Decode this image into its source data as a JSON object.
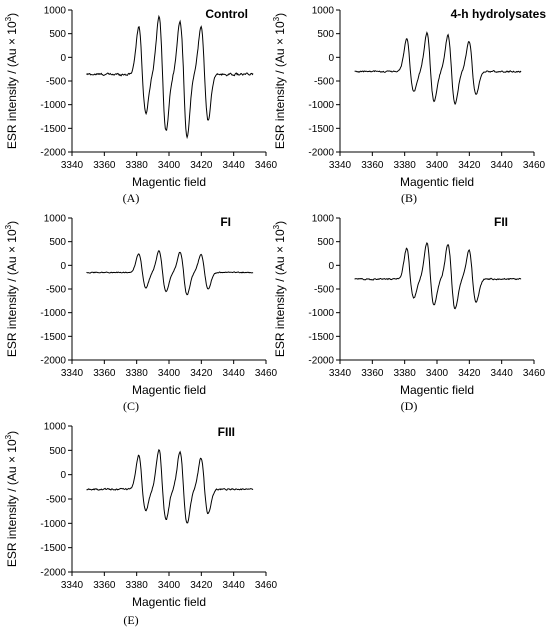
{
  "figure": {
    "panels": [
      {
        "title": "Control",
        "caption": "(A)",
        "amp": 1.0,
        "spread": 1.0,
        "baseline": -360,
        "noise": 40
      },
      {
        "title": "4-h hydrolysates",
        "caption": "(B)",
        "amp": 0.62,
        "spread": 0.62,
        "baseline": -300,
        "noise": 28
      },
      {
        "title": "FI",
        "caption": "(C)",
        "amp": 0.33,
        "spread": 0.33,
        "baseline": -150,
        "noise": 18
      },
      {
        "title": "FII",
        "caption": "(D)",
        "amp": 0.58,
        "spread": 0.58,
        "baseline": -290,
        "noise": 28
      },
      {
        "title": "FIII",
        "caption": "(E)",
        "amp": 0.6,
        "spread": 0.6,
        "baseline": -300,
        "noise": 28
      }
    ]
  },
  "chart_data": [
    {
      "type": "line",
      "title": "Control",
      "caption": "(A)",
      "xlabel": "Magentic field",
      "ylabel": "ESR intensity / (Au × 10",
      "ylabel_sup": "3",
      "ylabel_close": ")",
      "xlim": [
        3340,
        3460
      ],
      "ylim": [
        -2000,
        1000
      ],
      "xticks": [
        "3340",
        "3360",
        "3380",
        "3400",
        "3420",
        "3440",
        "3460"
      ],
      "yticks": [
        "1000",
        "500",
        "0",
        "-500",
        "-1000",
        "-1500",
        "-2000"
      ],
      "x_range": [
        3349,
        3452
      ],
      "baseline": -360,
      "lines": [
        {
          "x": 3383.5,
          "peak": 650,
          "trough": -1180
        },
        {
          "x": 3396,
          "peak": 860,
          "trough": -1550
        },
        {
          "x": 3409,
          "peak": 750,
          "trough": -1680
        },
        {
          "x": 3422,
          "peak": 640,
          "trough": -1330
        }
      ]
    },
    {
      "type": "line",
      "title": "4-h hydrolysates",
      "caption": "(B)",
      "xlabel": "Magentic field",
      "ylabel": "ESR intensity / (Au × 10",
      "ylabel_sup": "3",
      "ylabel_close": ")",
      "xlim": [
        3340,
        3460
      ],
      "ylim": [
        -2000,
        1000
      ],
      "xticks": [
        "3340",
        "3360",
        "3380",
        "3400",
        "3420",
        "3440",
        "3460"
      ],
      "yticks": [
        "1000",
        "500",
        "0",
        "-500",
        "-1000",
        "-1500",
        "-2000"
      ],
      "x_range": [
        3349,
        3452
      ],
      "baseline": -300,
      "lines": [
        {
          "x": 3383.5,
          "peak": 400,
          "trough": -730
        },
        {
          "x": 3396,
          "peak": 520,
          "trough": -920
        },
        {
          "x": 3409,
          "peak": 460,
          "trough": -1000
        },
        {
          "x": 3422,
          "peak": 340,
          "trough": -800
        }
      ]
    },
    {
      "type": "line",
      "title": "FI",
      "caption": "(C)",
      "xlabel": "Magentic field",
      "ylabel": "ESR intensity / (Au × 10",
      "ylabel_sup": "3",
      "ylabel_close": ")",
      "xlim": [
        3340,
        3460
      ],
      "ylim": [
        -2000,
        1000
      ],
      "xticks": [
        "3340",
        "3360",
        "3380",
        "3400",
        "3420",
        "3440",
        "3460"
      ],
      "yticks": [
        "1000",
        "500",
        "0",
        "-500",
        "-1000",
        "-1500",
        "-2000"
      ],
      "x_range": [
        3349,
        3452
      ],
      "baseline": -150,
      "lines": [
        {
          "x": 3383.5,
          "peak": 250,
          "trough": -480
        },
        {
          "x": 3396,
          "peak": 300,
          "trough": -560
        },
        {
          "x": 3409,
          "peak": 280,
          "trough": -620
        },
        {
          "x": 3422,
          "peak": 220,
          "trough": -500
        }
      ]
    },
    {
      "type": "line",
      "title": "FII",
      "caption": "(D)",
      "xlabel": "Magentic field",
      "ylabel": "ESR intensity / (Au × 10",
      "ylabel_sup": "3",
      "ylabel_close": ")",
      "xlim": [
        3340,
        3460
      ],
      "ylim": [
        -2000,
        1000
      ],
      "xticks": [
        "3340",
        "3360",
        "3380",
        "3400",
        "3420",
        "3440",
        "3460"
      ],
      "yticks": [
        "1000",
        "500",
        "0",
        "-500",
        "-1000",
        "-1500",
        "-2000"
      ],
      "x_range": [
        3349,
        3452
      ],
      "baseline": -290,
      "lines": [
        {
          "x": 3383.5,
          "peak": 360,
          "trough": -690
        },
        {
          "x": 3396,
          "peak": 470,
          "trough": -850
        },
        {
          "x": 3409,
          "peak": 440,
          "trough": -930
        },
        {
          "x": 3422,
          "peak": 320,
          "trough": -780
        }
      ]
    },
    {
      "type": "line",
      "title": "FIII",
      "caption": "(E)",
      "xlabel": "Magentic field",
      "ylabel": "ESR intensity / (Au × 10",
      "ylabel_sup": "3",
      "ylabel_close": ")",
      "xlim": [
        3340,
        3460
      ],
      "ylim": [
        -2000,
        1000
      ],
      "xticks": [
        "3340",
        "3360",
        "3380",
        "3400",
        "3420",
        "3440",
        "3460"
      ],
      "yticks": [
        "1000",
        "500",
        "0",
        "-500",
        "-1000",
        "-1500",
        "-2000"
      ],
      "x_range": [
        3349,
        3452
      ],
      "baseline": -300,
      "lines": [
        {
          "x": 3383.5,
          "peak": 390,
          "trough": -730
        },
        {
          "x": 3396,
          "peak": 510,
          "trough": -930
        },
        {
          "x": 3409,
          "peak": 470,
          "trough": -1010
        },
        {
          "x": 3422,
          "peak": 340,
          "trough": -810
        }
      ]
    }
  ]
}
